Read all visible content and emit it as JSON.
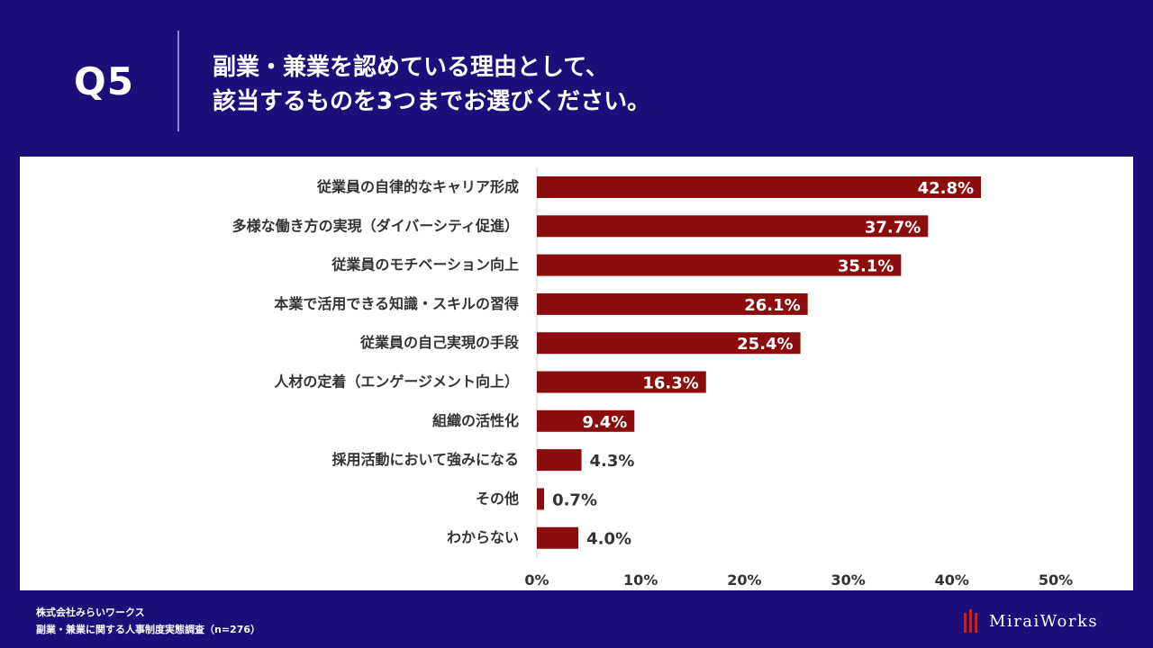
{
  "question": {
    "number": "Q5",
    "title_line1": "副業・兼業を認めている理由として、",
    "title_line2": "該当するものを3つまでお選びください。"
  },
  "chart_data": {
    "type": "bar",
    "orientation": "horizontal",
    "categories": [
      "従業員の自律的なキャリア形成",
      "多様な働き方の実現（ダイバーシティ促進）",
      "従業員のモチベーション向上",
      "本業で活用できる知識・スキルの習得",
      "従業員の自己実現の手段",
      "人材の定着（エンゲージメント向上）",
      "組織の活性化",
      "採用活動において強みになる",
      "その他",
      "わからない"
    ],
    "values": [
      42.8,
      37.7,
      35.1,
      26.1,
      25.4,
      16.3,
      9.4,
      4.3,
      0.7,
      4.0
    ],
    "value_labels": [
      "42.8%",
      "37.7%",
      "35.1%",
      "26.1%",
      "25.4%",
      "16.3%",
      "9.4%",
      "4.3%",
      "0.7%",
      "4.0%"
    ],
    "xlim": [
      0,
      50
    ],
    "xticks": [
      0,
      10,
      20,
      30,
      40,
      50
    ],
    "xtick_labels": [
      "0%",
      "10%",
      "20%",
      "30%",
      "40%",
      "50%"
    ],
    "bar_color": "#8b0d0d",
    "grid": false
  },
  "footer": {
    "company": "株式会社みらいワークス",
    "survey": "副業・兼業に関する人事制度実態調査（n=276）"
  },
  "logo": {
    "text": "MiraiWorks",
    "mark_color": "#b3262e"
  }
}
